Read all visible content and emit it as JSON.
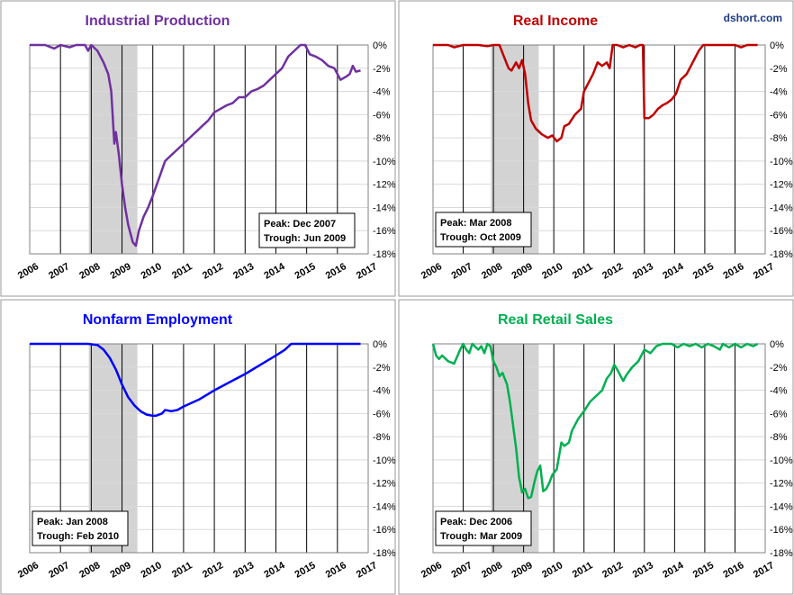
{
  "source_label": "dshort.com",
  "colors": {
    "source": "#1f3c88",
    "recession": "#d3d3d3"
  },
  "chart_data": [
    {
      "type": "line",
      "title": "Industrial Production",
      "color": "#7030a0",
      "title_color": "#7030a0",
      "x_ticks": [
        "2006",
        "2007",
        "2008",
        "2009",
        "2010",
        "2011",
        "2012",
        "2013",
        "2014",
        "2015",
        "2016",
        "2017"
      ],
      "x_range": [
        2006,
        2017
      ],
      "y_ticks": [
        "0%",
        "-2%",
        "-4%",
        "-6%",
        "-8%",
        "-10%",
        "-12%",
        "-14%",
        "-16%",
        "-18%"
      ],
      "ylim": [
        -18,
        0
      ],
      "recession": [
        2007.92,
        2009.5
      ],
      "annotation": {
        "peak": "Peak: Dec 2007",
        "trough": "Trough: Jun 2009"
      },
      "annotation_corner": "bottom-right",
      "series": [
        {
          "values": [
            [
              2006.0,
              0
            ],
            [
              2006.5,
              0
            ],
            [
              2006.8,
              -0.3
            ],
            [
              2007.0,
              0
            ],
            [
              2007.3,
              -0.2
            ],
            [
              2007.5,
              0
            ],
            [
              2007.8,
              0
            ],
            [
              2007.9,
              -0.5
            ],
            [
              2008.0,
              0
            ],
            [
              2008.2,
              -0.5
            ],
            [
              2008.4,
              -1.5
            ],
            [
              2008.55,
              -2.5
            ],
            [
              2008.65,
              -4
            ],
            [
              2008.75,
              -8.5
            ],
            [
              2008.8,
              -7.5
            ],
            [
              2008.9,
              -9.5
            ],
            [
              2009.0,
              -12
            ],
            [
              2009.1,
              -14
            ],
            [
              2009.2,
              -15.5
            ],
            [
              2009.35,
              -17
            ],
            [
              2009.45,
              -17.3
            ],
            [
              2009.55,
              -16
            ],
            [
              2009.7,
              -14.8
            ],
            [
              2009.85,
              -14
            ],
            [
              2010.0,
              -13
            ],
            [
              2010.2,
              -11.5
            ],
            [
              2010.4,
              -10
            ],
            [
              2010.6,
              -9.5
            ],
            [
              2010.8,
              -9
            ],
            [
              2011.0,
              -8.5
            ],
            [
              2011.2,
              -8
            ],
            [
              2011.4,
              -7.5
            ],
            [
              2011.6,
              -7
            ],
            [
              2011.8,
              -6.5
            ],
            [
              2012.0,
              -5.8
            ],
            [
              2012.2,
              -5.5
            ],
            [
              2012.4,
              -5.2
            ],
            [
              2012.6,
              -5
            ],
            [
              2012.8,
              -4.5
            ],
            [
              2013.0,
              -4.5
            ],
            [
              2013.2,
              -4
            ],
            [
              2013.4,
              -3.8
            ],
            [
              2013.6,
              -3.5
            ],
            [
              2013.8,
              -3
            ],
            [
              2014.0,
              -2.5
            ],
            [
              2014.2,
              -2
            ],
            [
              2014.4,
              -1
            ],
            [
              2014.6,
              -0.5
            ],
            [
              2014.8,
              0
            ],
            [
              2014.95,
              0
            ],
            [
              2015.1,
              -0.8
            ],
            [
              2015.3,
              -1
            ],
            [
              2015.5,
              -1.3
            ],
            [
              2015.7,
              -1.8
            ],
            [
              2015.9,
              -2
            ],
            [
              2016.0,
              -2.5
            ],
            [
              2016.1,
              -3
            ],
            [
              2016.3,
              -2.7
            ],
            [
              2016.4,
              -2.5
            ],
            [
              2016.5,
              -1.8
            ],
            [
              2016.6,
              -2.3
            ],
            [
              2016.75,
              -2.2
            ]
          ]
        }
      ]
    },
    {
      "type": "line",
      "title": "Real Income",
      "color": "#c00000",
      "title_color": "#c00000",
      "x_ticks": [
        "2006",
        "2007",
        "2008",
        "2009",
        "2010",
        "2011",
        "2012",
        "2013",
        "2014",
        "2015",
        "2016",
        "2017"
      ],
      "x_range": [
        2006,
        2017
      ],
      "y_ticks": [
        "0%",
        "-2%",
        "-4%",
        "-6%",
        "-8%",
        "-10%",
        "-12%",
        "-14%",
        "-16%",
        "-18%"
      ],
      "ylim": [
        -18,
        0
      ],
      "recession": [
        2007.92,
        2009.5
      ],
      "annotation": {
        "peak": "Peak: Mar 2008",
        "trough": "Trough: Oct 2009"
      },
      "annotation_corner": "bottom-left",
      "series": [
        {
          "values": [
            [
              2006.0,
              0
            ],
            [
              2006.5,
              0
            ],
            [
              2006.7,
              -0.2
            ],
            [
              2007.0,
              0
            ],
            [
              2007.5,
              0
            ],
            [
              2007.8,
              -0.1
            ],
            [
              2008.0,
              0
            ],
            [
              2008.2,
              0
            ],
            [
              2008.35,
              -1
            ],
            [
              2008.5,
              -2
            ],
            [
              2008.6,
              -2.2
            ],
            [
              2008.75,
              -1.5
            ],
            [
              2008.85,
              -2
            ],
            [
              2008.95,
              -1.3
            ],
            [
              2009.05,
              -2.5
            ],
            [
              2009.15,
              -5
            ],
            [
              2009.25,
              -6.5
            ],
            [
              2009.4,
              -7.2
            ],
            [
              2009.6,
              -7.7
            ],
            [
              2009.8,
              -8
            ],
            [
              2009.95,
              -7.8
            ],
            [
              2010.1,
              -8.3
            ],
            [
              2010.25,
              -8
            ],
            [
              2010.35,
              -7
            ],
            [
              2010.5,
              -6.8
            ],
            [
              2010.7,
              -6
            ],
            [
              2010.9,
              -5.5
            ],
            [
              2011.0,
              -4
            ],
            [
              2011.1,
              -3.5
            ],
            [
              2011.3,
              -2.5
            ],
            [
              2011.45,
              -1.5
            ],
            [
              2011.6,
              -1.8
            ],
            [
              2011.75,
              -1.5
            ],
            [
              2011.85,
              -2
            ],
            [
              2011.95,
              0
            ],
            [
              2012.1,
              0
            ],
            [
              2012.3,
              -0.2
            ],
            [
              2012.5,
              0
            ],
            [
              2012.7,
              -0.2
            ],
            [
              2012.85,
              0
            ],
            [
              2012.95,
              0
            ],
            [
              2013.0,
              -6.3
            ],
            [
              2013.15,
              -6.3
            ],
            [
              2013.3,
              -6
            ],
            [
              2013.45,
              -5.5
            ],
            [
              2013.6,
              -5.2
            ],
            [
              2013.75,
              -5
            ],
            [
              2013.9,
              -4.7
            ],
            [
              2014.05,
              -4.2
            ],
            [
              2014.2,
              -3
            ],
            [
              2014.4,
              -2.5
            ],
            [
              2014.6,
              -1.5
            ],
            [
              2014.8,
              -0.5
            ],
            [
              2014.95,
              0
            ],
            [
              2015.2,
              0
            ],
            [
              2015.5,
              0
            ],
            [
              2015.8,
              0
            ],
            [
              2016.0,
              0
            ],
            [
              2016.2,
              -0.2
            ],
            [
              2016.4,
              0
            ],
            [
              2016.75,
              0
            ]
          ]
        }
      ]
    },
    {
      "type": "line",
      "title": "Nonfarm Employment",
      "color": "#0000ff",
      "title_color": "#0000ff",
      "x_ticks": [
        "2006",
        "2007",
        "2008",
        "2009",
        "2010",
        "2011",
        "2012",
        "2013",
        "2014",
        "2015",
        "2016",
        "2017"
      ],
      "x_range": [
        2006,
        2017
      ],
      "y_ticks": [
        "0%",
        "-2%",
        "-4%",
        "-6%",
        "-8%",
        "-10%",
        "-12%",
        "-14%",
        "-16%",
        "-18%"
      ],
      "ylim": [
        -18,
        0
      ],
      "recession": [
        2007.92,
        2009.5
      ],
      "annotation": {
        "peak": "Peak: Jan 2008",
        "trough": "Trough: Feb 2010"
      },
      "annotation_corner": "bottom-left",
      "series": [
        {
          "values": [
            [
              2006.0,
              0
            ],
            [
              2007.0,
              0
            ],
            [
              2007.9,
              0
            ],
            [
              2008.2,
              -0.1
            ],
            [
              2008.4,
              -0.5
            ],
            [
              2008.6,
              -1.2
            ],
            [
              2008.8,
              -2.2
            ],
            [
              2009.0,
              -3.5
            ],
            [
              2009.2,
              -4.6
            ],
            [
              2009.4,
              -5.3
            ],
            [
              2009.6,
              -5.8
            ],
            [
              2009.8,
              -6.1
            ],
            [
              2010.0,
              -6.2
            ],
            [
              2010.1,
              -6.2
            ],
            [
              2010.3,
              -6
            ],
            [
              2010.4,
              -5.7
            ],
            [
              2010.6,
              -5.8
            ],
            [
              2010.8,
              -5.7
            ],
            [
              2011.0,
              -5.4
            ],
            [
              2011.5,
              -4.8
            ],
            [
              2012.0,
              -4
            ],
            [
              2012.5,
              -3.3
            ],
            [
              2013.0,
              -2.6
            ],
            [
              2013.5,
              -1.8
            ],
            [
              2014.0,
              -1
            ],
            [
              2014.3,
              -0.5
            ],
            [
              2014.5,
              0
            ],
            [
              2015.0,
              0
            ],
            [
              2016.0,
              0
            ],
            [
              2016.75,
              0
            ]
          ]
        }
      ]
    },
    {
      "type": "line",
      "title": "Real Retail Sales",
      "color": "#00b050",
      "title_color": "#00b050",
      "x_ticks": [
        "2006",
        "2007",
        "2008",
        "2009",
        "2010",
        "2011",
        "2012",
        "2013",
        "2014",
        "2015",
        "2016",
        "2017"
      ],
      "x_range": [
        2006,
        2017
      ],
      "y_ticks": [
        "0%",
        "-2%",
        "-4%",
        "-6%",
        "-8%",
        "-10%",
        "-12%",
        "-14%",
        "-16%",
        "-18%"
      ],
      "ylim": [
        -18,
        0
      ],
      "recession": [
        2007.92,
        2009.5
      ],
      "annotation": {
        "peak": "Peak: Dec 2006",
        "trough": "Trough: Mar 2009"
      },
      "annotation_corner": "bottom-left",
      "series": [
        {
          "values": [
            [
              2006.0,
              0
            ],
            [
              2006.1,
              -1
            ],
            [
              2006.2,
              -1.3
            ],
            [
              2006.3,
              -1
            ],
            [
              2006.5,
              -1.5
            ],
            [
              2006.7,
              -1.7
            ],
            [
              2006.9,
              -0.5
            ],
            [
              2007.0,
              0
            ],
            [
              2007.1,
              -0.5
            ],
            [
              2007.2,
              -0.8
            ],
            [
              2007.3,
              0
            ],
            [
              2007.5,
              -0.5
            ],
            [
              2007.6,
              -0.2
            ],
            [
              2007.7,
              -0.8
            ],
            [
              2007.8,
              0
            ],
            [
              2007.9,
              -0.2
            ],
            [
              2008.0,
              -1.5
            ],
            [
              2008.1,
              -2
            ],
            [
              2008.2,
              -2.8
            ],
            [
              2008.3,
              -2.5
            ],
            [
              2008.45,
              -3.5
            ],
            [
              2008.55,
              -5
            ],
            [
              2008.65,
              -7
            ],
            [
              2008.75,
              -9
            ],
            [
              2008.85,
              -11.5
            ],
            [
              2008.95,
              -12.8
            ],
            [
              2009.05,
              -12.5
            ],
            [
              2009.15,
              -13.3
            ],
            [
              2009.25,
              -13.2
            ],
            [
              2009.35,
              -12
            ],
            [
              2009.45,
              -11
            ],
            [
              2009.55,
              -10.5
            ],
            [
              2009.65,
              -12.7
            ],
            [
              2009.75,
              -12.5
            ],
            [
              2009.85,
              -12
            ],
            [
              2009.95,
              -11.3
            ],
            [
              2010.1,
              -10.8
            ],
            [
              2010.25,
              -8.5
            ],
            [
              2010.35,
              -8.8
            ],
            [
              2010.5,
              -8.5
            ],
            [
              2010.6,
              -7.5
            ],
            [
              2010.8,
              -6.5
            ],
            [
              2011.0,
              -5.8
            ],
            [
              2011.2,
              -5
            ],
            [
              2011.4,
              -4.5
            ],
            [
              2011.6,
              -4
            ],
            [
              2011.75,
              -3
            ],
            [
              2011.9,
              -2.5
            ],
            [
              2012.0,
              -1.8
            ],
            [
              2012.1,
              -2.2
            ],
            [
              2012.3,
              -3.2
            ],
            [
              2012.4,
              -2.7
            ],
            [
              2012.6,
              -2
            ],
            [
              2012.8,
              -1.5
            ],
            [
              2013.0,
              -0.5
            ],
            [
              2013.2,
              -0.8
            ],
            [
              2013.4,
              -0.2
            ],
            [
              2013.6,
              0
            ],
            [
              2013.9,
              0
            ],
            [
              2014.1,
              -0.3
            ],
            [
              2014.3,
              0
            ],
            [
              2014.5,
              -0.2
            ],
            [
              2014.7,
              0
            ],
            [
              2014.9,
              -0.3
            ],
            [
              2015.1,
              0
            ],
            [
              2015.3,
              -0.2
            ],
            [
              2015.5,
              -0.5
            ],
            [
              2015.6,
              0
            ],
            [
              2015.8,
              -0.3
            ],
            [
              2016.0,
              0
            ],
            [
              2016.2,
              -0.3
            ],
            [
              2016.4,
              0
            ],
            [
              2016.6,
              -0.2
            ],
            [
              2016.75,
              0
            ]
          ]
        }
      ]
    }
  ]
}
